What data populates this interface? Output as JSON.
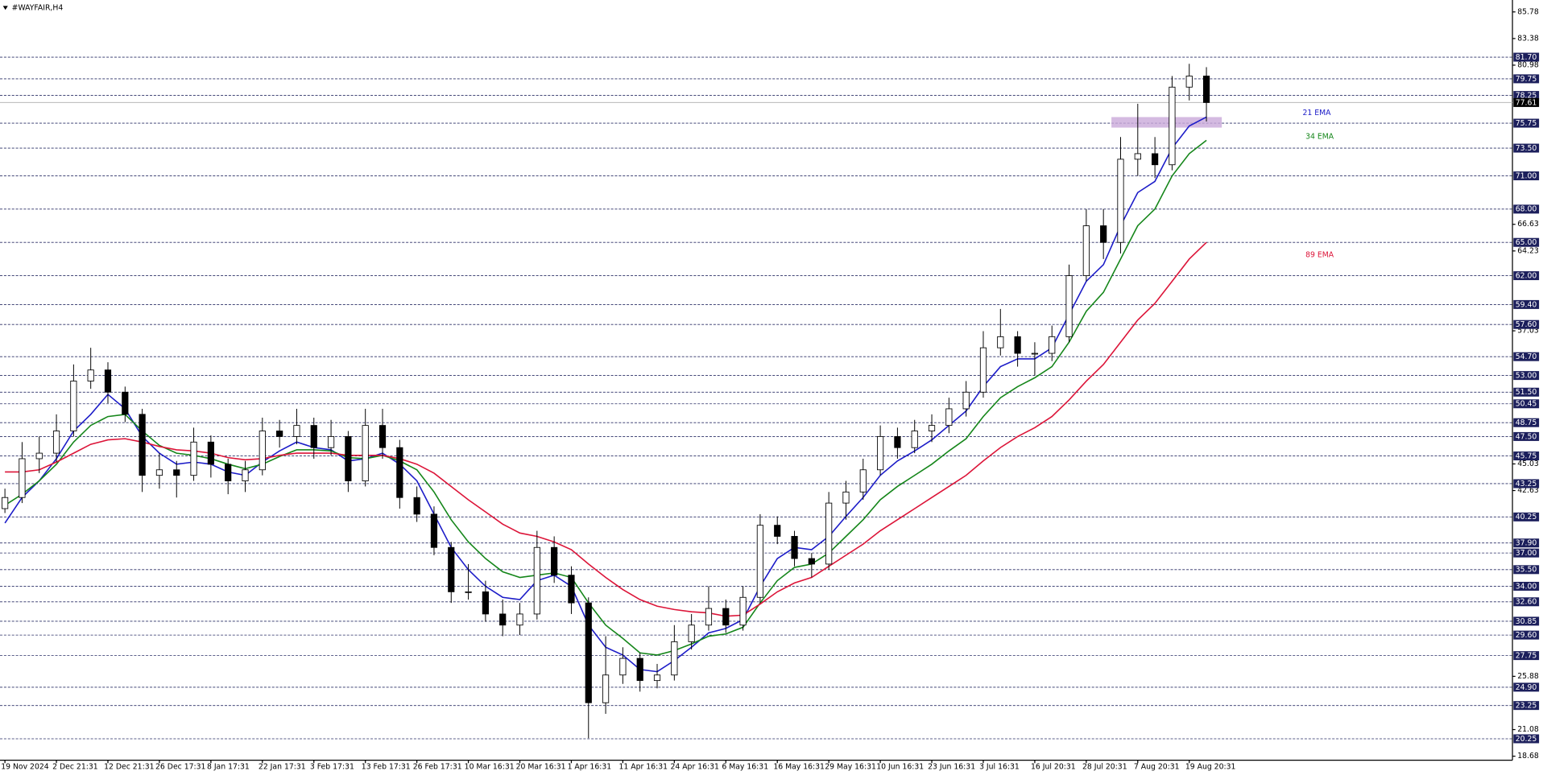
{
  "chart_data": {
    "type": "candlestick",
    "title": "#WAYFAIR,H4",
    "ylim": [
      18.32,
      86.85
    ],
    "yticks": [
      85.78,
      83.38,
      80.98,
      66.63,
      64.23,
      57.03,
      45.03,
      42.63,
      25.88,
      21.08,
      18.68
    ],
    "last_price": 77.61,
    "highlight_zone": [
      75.35,
      76.3
    ],
    "levels": [
      {
        "value": 81.7,
        "label": "81.70"
      },
      {
        "value": 79.75,
        "label": "79.75"
      },
      {
        "value": 78.25,
        "label": "78.25"
      },
      {
        "value": 75.75,
        "label": "75.75"
      },
      {
        "value": 73.5,
        "label": "73.50"
      },
      {
        "value": 71,
        "label": "71.00"
      },
      {
        "value": 68,
        "label": "68.00"
      },
      {
        "value": 65,
        "label": "65.00"
      },
      {
        "value": 62,
        "label": "62.00"
      },
      {
        "value": 59.4,
        "label": "59.40"
      },
      {
        "value": 57.6,
        "label": "57.60"
      },
      {
        "value": 54.7,
        "label": "54.70"
      },
      {
        "value": 53,
        "label": "53.00"
      },
      {
        "value": 51.5,
        "label": "51.50"
      },
      {
        "value": 50.45,
        "label": "50.45"
      },
      {
        "value": 48.75,
        "label": "48.75"
      },
      {
        "value": 47.5,
        "label": "47.50"
      },
      {
        "value": 45.75,
        "label": "45.75"
      },
      {
        "value": 43.25,
        "label": "43.25"
      },
      {
        "value": 40.25,
        "label": "40.25"
      },
      {
        "value": 37.9,
        "label": "37.90"
      },
      {
        "value": 37,
        "label": "37.00"
      },
      {
        "value": 35.5,
        "label": "35.50"
      },
      {
        "value": 34,
        "label": "34.00"
      },
      {
        "value": 32.6,
        "label": "32.60"
      },
      {
        "value": 30.85,
        "label": "30.85"
      },
      {
        "value": 29.6,
        "label": "29.60"
      },
      {
        "value": 27.75,
        "label": "27.75"
      },
      {
        "value": 24.9,
        "label": "24.90"
      },
      {
        "value": 23.25,
        "label": "23.25"
      },
      {
        "value": 20.25,
        "label": "20.25"
      }
    ],
    "categories": [
      "19 Nov 2024",
      null,
      null,
      "2 Dec 21:31",
      null,
      null,
      "12 Dec 21:31",
      null,
      null,
      "26 Dec 17:31",
      null,
      null,
      "8 Jan 17:31",
      null,
      null,
      "22 Jan 17:31",
      null,
      null,
      "3 Feb 17:31",
      null,
      null,
      "13 Feb 17:31",
      null,
      null,
      "26 Feb 17:31",
      null,
      null,
      "10 Mar 16:31",
      null,
      null,
      "20 Mar 16:31",
      null,
      null,
      "1 Apr 16:31",
      null,
      null,
      "11 Apr 16:31",
      null,
      null,
      "24 Apr 16:31",
      null,
      null,
      "6 May 16:31",
      null,
      null,
      "16 May 16:31",
      null,
      null,
      "29 May 16:31",
      null,
      null,
      "10 Jun 16:31",
      null,
      null,
      "23 Jun 16:31",
      null,
      null,
      "3 Jul 16:31",
      null,
      null,
      "16 Jul 20:31",
      null,
      null,
      "28 Jul 20:31",
      null,
      null,
      "7 Aug 20:31",
      null,
      null,
      "19 Aug 20:31",
      null
    ],
    "open": [
      41.0,
      42.0,
      45.5,
      46.0,
      48.0,
      52.5,
      53.5,
      51.5,
      49.5,
      44.0,
      44.5,
      44.0,
      47.0,
      45.0,
      43.5,
      44.5,
      48.0,
      47.5,
      48.5,
      46.5,
      47.5,
      43.5,
      48.5,
      46.5,
      42.0,
      40.5,
      37.5,
      33.5,
      33.5,
      31.5,
      30.5,
      31.5,
      37.5,
      35.0,
      32.5,
      23.5,
      26.0,
      27.5,
      25.5,
      26.0,
      29.0,
      30.5,
      32.0,
      30.5,
      33.0,
      39.5,
      38.5,
      36.5,
      36.0,
      41.5,
      42.5,
      44.5,
      47.5,
      46.5,
      48.0,
      48.5,
      50.0,
      51.5,
      55.5,
      56.5,
      55.0,
      55.0,
      56.5,
      62.0,
      66.5,
      65.0,
      72.5,
      73.0,
      72.0,
      79.0,
      80.0
    ],
    "high": [
      42.8,
      47.0,
      47.5,
      49.5,
      54.0,
      55.5,
      54.2,
      52.0,
      50.0,
      46.0,
      45.3,
      48.3,
      47.6,
      45.5,
      45.3,
      49.2,
      49.0,
      50.0,
      49.2,
      49.0,
      48.0,
      50.0,
      50.0,
      47.2,
      43.0,
      41.2,
      38.0,
      36.0,
      34.5,
      32.8,
      32.5,
      39.0,
      38.5,
      35.8,
      33.0,
      29.5,
      28.5,
      28.0,
      27.0,
      30.5,
      31.5,
      34.0,
      32.8,
      34.0,
      40.5,
      40.3,
      39.0,
      37.0,
      42.5,
      43.5,
      45.5,
      48.5,
      48.3,
      49.0,
      49.5,
      51.0,
      52.5,
      57.0,
      59.0,
      57.0,
      56.0,
      57.5,
      63.0,
      68.0,
      68.0,
      74.5,
      77.5,
      74.5,
      80.0,
      81.1,
      80.8
    ],
    "low": [
      40.6,
      41.5,
      44.2,
      45.2,
      47.5,
      51.8,
      50.5,
      48.8,
      42.5,
      42.8,
      42.0,
      43.5,
      43.8,
      42.3,
      42.5,
      44.0,
      46.5,
      46.8,
      45.5,
      45.8,
      42.5,
      43.0,
      45.5,
      41.0,
      39.8,
      36.8,
      32.5,
      32.8,
      30.8,
      29.5,
      29.6,
      31.0,
      34.3,
      31.5,
      20.3,
      22.5,
      25.2,
      24.5,
      24.8,
      25.5,
      28.3,
      30.0,
      29.8,
      30.0,
      32.5,
      37.8,
      35.8,
      34.8,
      35.5,
      40.0,
      41.8,
      44.0,
      45.5,
      46.0,
      47.0,
      47.8,
      49.3,
      51.0,
      54.8,
      53.8,
      53.0,
      54.3,
      56.0,
      61.5,
      63.5,
      64.0,
      71.0,
      70.8,
      71.5,
      77.8,
      75.9
    ],
    "close": [
      42.0,
      45.5,
      46.0,
      48.0,
      52.5,
      53.5,
      51.5,
      49.5,
      44.0,
      44.5,
      44.0,
      47.0,
      45.0,
      43.5,
      44.5,
      48.0,
      47.5,
      48.5,
      46.5,
      47.5,
      43.5,
      48.5,
      46.5,
      42.0,
      40.5,
      37.5,
      33.5,
      33.5,
      31.5,
      30.5,
      31.5,
      37.5,
      35.0,
      32.5,
      23.5,
      26.0,
      27.5,
      25.5,
      26.0,
      29.0,
      30.5,
      32.0,
      30.5,
      33.0,
      39.5,
      38.5,
      36.5,
      36.0,
      41.5,
      42.5,
      44.5,
      47.5,
      46.5,
      48.0,
      48.5,
      50.0,
      51.5,
      55.5,
      56.5,
      55.0,
      55.0,
      56.5,
      62.0,
      66.5,
      65.0,
      72.5,
      73.0,
      72.0,
      79.0,
      80.0,
      77.61
    ],
    "series": [
      {
        "name": "21 EMA",
        "color": "#1c1cc8",
        "values": [
          39.7,
          42,
          43.5,
          45.5,
          48,
          49.5,
          51.3,
          50,
          47.5,
          46,
          45,
          45.2,
          45,
          44.3,
          44,
          45.2,
          46.2,
          47,
          46.5,
          46.3,
          45.3,
          45.5,
          46,
          45,
          43.5,
          40.5,
          37.5,
          35.5,
          34,
          33,
          32.8,
          34.5,
          35,
          34,
          30.5,
          28.5,
          27.8,
          26.5,
          26.3,
          27.3,
          28.5,
          29.8,
          30.2,
          31,
          34,
          36.5,
          37.5,
          37.3,
          38.5,
          40.3,
          42,
          44,
          45.3,
          46.2,
          47.2,
          48.5,
          49.8,
          52,
          53.8,
          54.5,
          54.5,
          55.5,
          58.5,
          61.5,
          63,
          66.5,
          69.5,
          70.5,
          73.5,
          75.5,
          76.3
        ]
      },
      {
        "name": "34 EMA",
        "color": "#15861a",
        "values": [
          41.3,
          42.3,
          43.5,
          45,
          47,
          48.5,
          49.3,
          49.5,
          48,
          46.7,
          46,
          45.8,
          45.5,
          45,
          44.6,
          45,
          45.7,
          46.3,
          46.3,
          46.2,
          45.6,
          45.5,
          45.8,
          45.3,
          44.5,
          42.5,
          40,
          38,
          36.5,
          35.3,
          34.8,
          35,
          35.2,
          34.8,
          32.5,
          30.5,
          29.3,
          28,
          27.8,
          28.2,
          28.8,
          29.5,
          29.7,
          30.3,
          32.5,
          34.5,
          35.7,
          36,
          37,
          38.5,
          40,
          41.8,
          43,
          44,
          45,
          46.2,
          47.3,
          49.3,
          51,
          52,
          52.8,
          53.8,
          56,
          58.8,
          60.5,
          63.5,
          66.5,
          68,
          71,
          73,
          74.2
        ]
      },
      {
        "name": "89 EMA",
        "color": "#dc1438",
        "values": [
          44.3,
          44.3,
          44.5,
          45.2,
          46,
          46.8,
          47.2,
          47.3,
          47,
          46.6,
          46.3,
          46.2,
          46,
          45.6,
          45.4,
          45.5,
          45.8,
          46,
          46,
          46,
          45.8,
          45.8,
          45.8,
          45.5,
          45,
          44.2,
          43,
          41.8,
          40.7,
          39.6,
          38.8,
          38.5,
          38,
          37.3,
          36,
          34.8,
          33.7,
          32.8,
          32.2,
          31.9,
          31.7,
          31.6,
          31.3,
          31.4,
          32.4,
          33.5,
          34.3,
          34.8,
          35.8,
          36.8,
          37.8,
          39,
          40,
          41,
          42,
          43,
          44,
          45.3,
          46.5,
          47.5,
          48.3,
          49.3,
          50.8,
          52.5,
          54,
          56,
          58,
          59.5,
          61.5,
          63.5,
          65
        ]
      }
    ]
  }
}
